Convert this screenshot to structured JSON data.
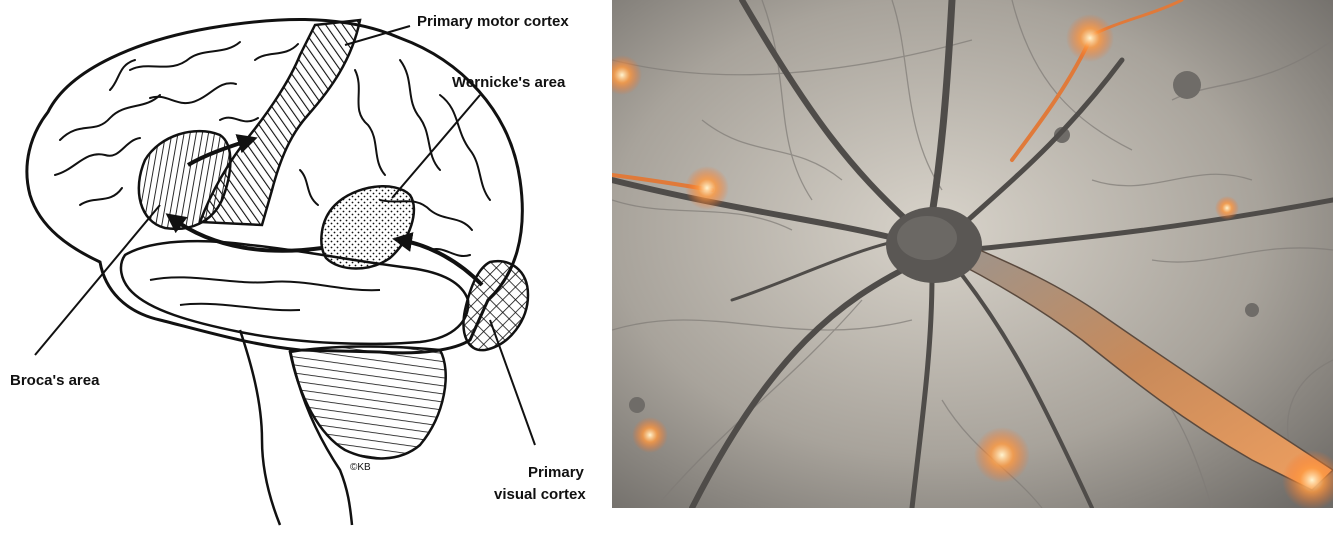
{
  "diagram": {
    "labels": {
      "primary_motor_cortex": "Primary motor cortex",
      "wernickes_area": "Wernicke's area",
      "brocas_area": "Broca's area",
      "primary_visual_cortex_line1": "Primary",
      "primary_visual_cortex_line2": "visual cortex",
      "copyright_mark": "©KB"
    },
    "colors": {
      "ink": "#111111",
      "paper": "#ffffff",
      "neuron_background": "#b9b4ab",
      "neuron_cell": "#5a5754",
      "axon_glow": "#e07a3a",
      "spark": "#ff6a1a"
    }
  }
}
